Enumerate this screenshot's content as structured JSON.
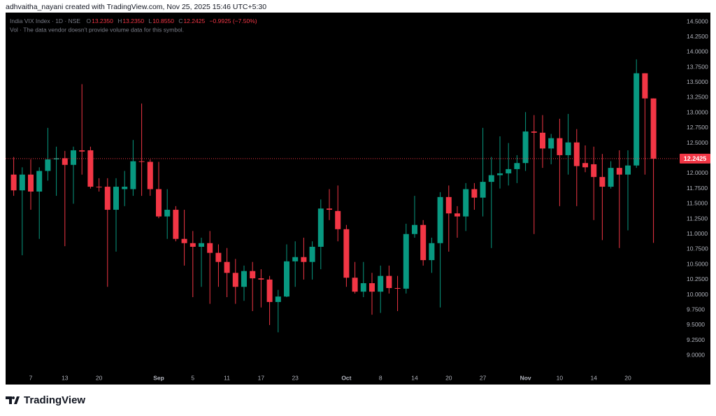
{
  "header": {
    "text": "adhvaitha_nayani created with TradingView.com, Nov 25, 2025 15:46 UTC+5:30"
  },
  "chart_data": {
    "type": "candlestick",
    "symbol": "India VIX Index · 1D · NSE",
    "ohlc_legend": [
      {
        "label": "O",
        "value": "13.2350"
      },
      {
        "label": "H",
        "value": "13.2350"
      },
      {
        "label": "L",
        "value": "10.8550"
      },
      {
        "label": "C",
        "value": "12.2425"
      }
    ],
    "change": "−0.9925 (−7.50%)",
    "volume_note": "Vol · The data vendor doesn't provide volume data for this symbol.",
    "up_color": "#089981",
    "down_color": "#f23645",
    "categories": [
      null,
      null,
      "7",
      null,
      null,
      null,
      "13",
      null,
      null,
      null,
      "20",
      null,
      null,
      null,
      null,
      null,
      null,
      "Sep",
      null,
      null,
      null,
      "5",
      null,
      null,
      null,
      "11",
      null,
      null,
      null,
      "17",
      null,
      null,
      null,
      "23",
      null,
      null,
      null,
      null,
      null,
      "Oct",
      null,
      null,
      null,
      "8",
      null,
      null,
      null,
      "14",
      null,
      null,
      null,
      "20",
      null,
      null,
      null,
      "27",
      null,
      null,
      null,
      null,
      "Nov",
      null,
      null,
      null,
      "10",
      null,
      null,
      null,
      "14",
      null,
      null,
      null,
      "20",
      null,
      null,
      null
    ],
    "open": [
      11.98,
      11.72,
      11.98,
      11.7,
      12.04,
      12.23,
      12.25,
      12.14,
      12.38,
      12.38,
      11.78,
      11.78,
      11.4,
      11.74,
      11.74,
      12.2,
      12.19,
      11.74,
      11.29,
      11.4,
      10.92,
      10.85,
      10.79,
      10.85,
      10.69,
      10.54,
      10.36,
      10.13,
      10.39,
      10.27,
      10.25,
      9.88,
      9.97,
      10.55,
      10.62,
      10.54,
      10.79,
      11.42,
      11.38,
      11.08,
      10.28,
      10.05,
      10.19,
      10.05,
      10.31,
      10.11,
      10.1,
      11.0,
      11.15,
      10.57,
      10.85,
      11.61,
      11.34,
      11.29,
      11.74,
      11.6,
      11.86,
      11.97,
      12.0,
      12.07,
      12.17,
      12.69,
      12.67,
      12.41,
      12.58,
      12.3,
      12.51,
      12.17,
      12.15,
      11.94,
      11.78,
      12.09,
      11.98,
      12.13,
      13.65,
      13.235
    ],
    "high": [
      12.27,
      12.1,
      12.23,
      12.1,
      12.75,
      12.44,
      12.37,
      12.44,
      13.47,
      12.44,
      11.92,
      11.92,
      11.92,
      12.04,
      12.55,
      13.15,
      12.23,
      12.19,
      11.74,
      11.46,
      11.4,
      11.05,
      10.94,
      11.05,
      10.83,
      10.77,
      10.59,
      10.48,
      10.54,
      10.42,
      10.31,
      10.08,
      10.83,
      10.88,
      10.94,
      10.88,
      11.57,
      11.74,
      11.8,
      11.15,
      10.54,
      10.54,
      10.36,
      10.48,
      10.48,
      10.31,
      11.17,
      11.63,
      11.23,
      10.94,
      11.69,
      11.8,
      11.46,
      11.84,
      11.84,
      12.75,
      12.27,
      12.61,
      12.5,
      12.3,
      13.01,
      12.96,
      12.96,
      12.65,
      12.9,
      12.98,
      12.73,
      12.46,
      12.44,
      12.32,
      12.2,
      12.38,
      12.38,
      13.88,
      13.65,
      13.235
    ],
    "low": [
      11.63,
      10.65,
      11.4,
      10.92,
      11.88,
      11.63,
      10.8,
      11.5,
      11.98,
      11.75,
      11.7,
      10.13,
      10.71,
      11.46,
      11.63,
      11.63,
      11.63,
      11.26,
      10.92,
      10.88,
      10.48,
      9.96,
      10.13,
      9.85,
      10.13,
      9.96,
      9.85,
      9.9,
      9.73,
      9.79,
      9.5,
      9.38,
      9.96,
      10.13,
      10.25,
      10.25,
      10.42,
      11.23,
      10.88,
      10.13,
      10.02,
      9.96,
      9.67,
      9.7,
      10.02,
      9.73,
      10.02,
      10.94,
      10.48,
      10.36,
      9.79,
      10.71,
      10.94,
      11.05,
      11.4,
      11.29,
      10.77,
      11.75,
      11.8,
      11.84,
      12.04,
      11.0,
      12.09,
      12.15,
      11.46,
      11.98,
      11.46,
      12.02,
      11.23,
      10.9,
      11.75,
      10.77,
      11.06,
      12.09,
      11.98,
      10.855
    ],
    "close": [
      11.72,
      11.98,
      11.7,
      12.04,
      12.23,
      12.25,
      12.14,
      12.38,
      12.36,
      11.78,
      11.77,
      11.4,
      11.78,
      11.78,
      12.2,
      12.19,
      11.74,
      11.29,
      11.4,
      10.92,
      10.85,
      10.79,
      10.85,
      10.69,
      10.54,
      10.36,
      10.13,
      10.39,
      10.27,
      10.25,
      9.88,
      9.97,
      10.55,
      10.62,
      10.54,
      10.79,
      11.42,
      11.4,
      11.08,
      10.28,
      10.05,
      10.19,
      10.05,
      10.31,
      10.11,
      10.1,
      11.0,
      11.15,
      10.57,
      10.85,
      11.61,
      11.34,
      11.29,
      11.74,
      11.6,
      11.86,
      11.97,
      12.0,
      12.07,
      12.17,
      12.69,
      12.67,
      12.41,
      12.58,
      12.3,
      12.51,
      12.12,
      12.1,
      11.94,
      11.78,
      12.09,
      11.98,
      12.13,
      13.65,
      13.235,
      12.2425
    ],
    "ylim": [
      8.75,
      14.65
    ],
    "yticks": [
      {
        "value": 9.0,
        "label": "9.0000"
      },
      {
        "value": 9.25,
        "label": "9.2500"
      },
      {
        "value": 9.5,
        "label": "9.5000"
      },
      {
        "value": 9.75,
        "label": "9.7500"
      },
      {
        "value": 10.0,
        "label": "10.0000"
      },
      {
        "value": 10.25,
        "label": "10.2500"
      },
      {
        "value": 10.5,
        "label": "10.5000"
      },
      {
        "value": 10.75,
        "label": "10.7500"
      },
      {
        "value": 11.0,
        "label": "11.0000"
      },
      {
        "value": 11.25,
        "label": "11.2500"
      },
      {
        "value": 11.5,
        "label": "11.5000"
      },
      {
        "value": 11.75,
        "label": "11.7500"
      },
      {
        "value": 12.0,
        "label": "12.0000"
      },
      {
        "value": 12.5,
        "label": "12.5000"
      },
      {
        "value": 12.75,
        "label": "12.7500"
      },
      {
        "value": 13.0,
        "label": "13.0000"
      },
      {
        "value": 13.25,
        "label": "13.2500"
      },
      {
        "value": 13.5,
        "label": "13.5000"
      },
      {
        "value": 13.75,
        "label": "13.7500"
      },
      {
        "value": 14.0,
        "label": "14.0000"
      },
      {
        "value": 14.25,
        "label": "14.2500"
      },
      {
        "value": 14.5,
        "label": "14.5000"
      }
    ],
    "last_price": {
      "value": 12.2425,
      "label": "12.2425"
    }
  },
  "footer": {
    "brand": "TradingView"
  }
}
